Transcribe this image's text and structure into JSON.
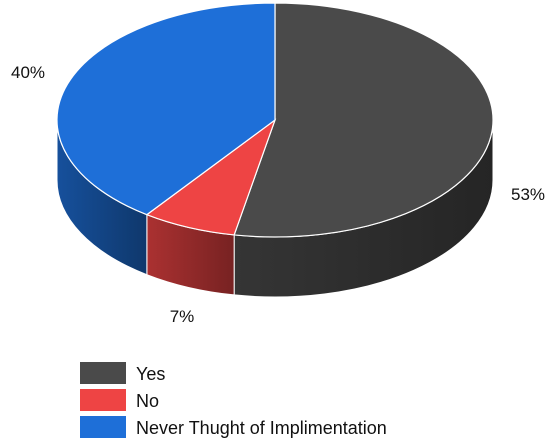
{
  "chart_data": {
    "type": "pie",
    "style": "3d",
    "categories": [
      "Yes",
      "No",
      "Never Thught of Implimentation"
    ],
    "values": [
      53,
      7,
      40
    ],
    "labels": [
      "53%",
      "7%",
      "40%"
    ],
    "colors": [
      "#4a4a4a",
      "#ee4444",
      "#1e6fd8"
    ],
    "legend_position": "bottom"
  }
}
